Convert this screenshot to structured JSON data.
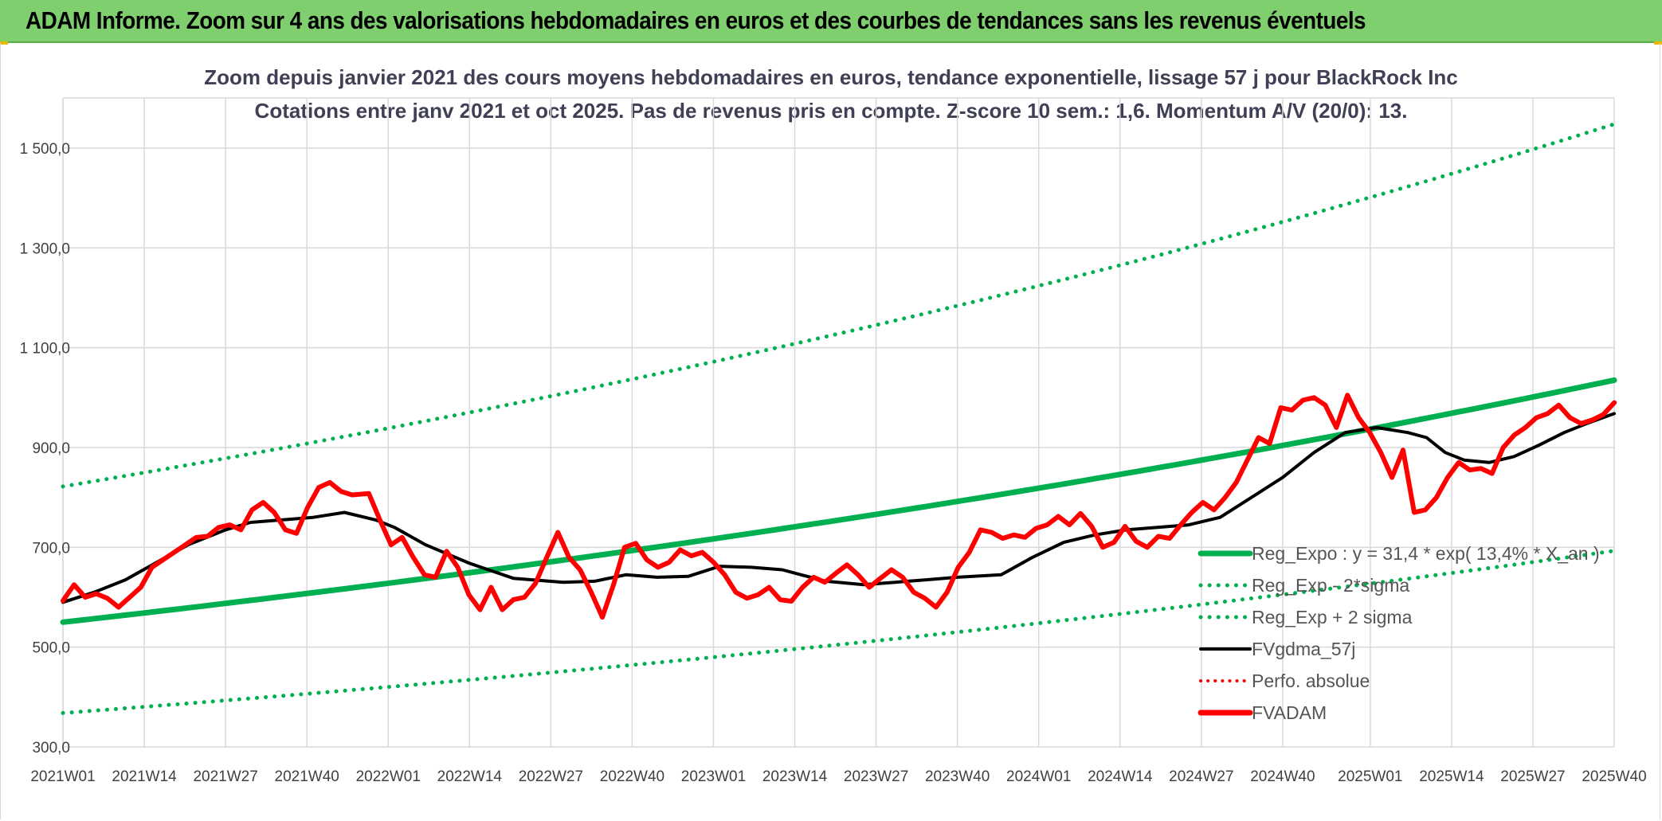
{
  "header": {
    "title": "ADAM Informe. Zoom sur 4 ans des valorisations hebdomadaires en euros et des courbes de tendances sans les revenus éventuels"
  },
  "colors": {
    "header_bg": "#7fcf6f",
    "trend": "#00b050",
    "price": "#ff0000",
    "smooth": "#000000",
    "grid": "#d9d9d9"
  },
  "chart_data": {
    "type": "line",
    "title": "Zoom depuis janvier 2021 des cours moyens hebdomadaires en euros, tendance exponentielle, lissage 57 j pour BlackRock Inc",
    "subtitle": "Cotations entre janv 2021 et oct 2025. Pas de revenus pris en compte. Z-score 10 sem.: 1,6. Momentum A/V (20/0): 13.",
    "xlabel": "",
    "ylabel": "",
    "ylim": [
      300,
      1600
    ],
    "yticks": [
      "300,0",
      "500,0",
      "700,0",
      "900,0",
      "1 100,0",
      "1 300,0",
      "1 500,0"
    ],
    "ytick_values": [
      300,
      500,
      700,
      900,
      1100,
      1300,
      1500
    ],
    "x_weeks": 248,
    "xticks": [
      "2021W01",
      "2021W14",
      "2021W27",
      "2021W40",
      "2022W01",
      "2022W14",
      "2022W27",
      "2022W40",
      "2023W01",
      "2023W14",
      "2023W27",
      "2023W40",
      "2024W01",
      "2024W14",
      "2024W27",
      "2024W40",
      "2025W01",
      "2025W14",
      "2025W27",
      "2025W40"
    ],
    "xtick_weeks": [
      0,
      13,
      26,
      39,
      52,
      65,
      78,
      91,
      104,
      117,
      130,
      143,
      156,
      169,
      182,
      195,
      209,
      222,
      235,
      248
    ],
    "legend": [
      {
        "name": "Reg_Expo : y = 31,4 * exp( 13,4% *  X_an )",
        "style": "trend"
      },
      {
        "name": "Reg_Exp - 2*sigma",
        "style": "dotted-green"
      },
      {
        "name": "Reg_Exp + 2 sigma",
        "style": "dotted-green"
      },
      {
        "name": "FVgdma_57j",
        "style": "smooth"
      },
      {
        "name": "Perfo. absolue",
        "style": "dotted-red"
      },
      {
        "name": "FVADAM",
        "style": "price"
      }
    ],
    "series": [
      {
        "name": "Reg_Expo",
        "kind": "exponential",
        "start": 550,
        "end": 1035
      },
      {
        "name": "Reg_Exp - 2*sigma",
        "kind": "exponential",
        "start": 368,
        "end": 693
      },
      {
        "name": "Reg_Exp + 2 sigma",
        "kind": "exponential",
        "start": 822,
        "end": 1548
      },
      {
        "name": "FVgdma_57j",
        "points": [
          [
            0,
            590
          ],
          [
            5,
            610
          ],
          [
            10,
            635
          ],
          [
            15,
            670
          ],
          [
            20,
            705
          ],
          [
            26,
            735
          ],
          [
            30,
            750
          ],
          [
            35,
            755
          ],
          [
            40,
            760
          ],
          [
            45,
            770
          ],
          [
            50,
            755
          ],
          [
            53,
            740
          ],
          [
            58,
            705
          ],
          [
            65,
            668
          ],
          [
            72,
            638
          ],
          [
            80,
            630
          ],
          [
            85,
            632
          ],
          [
            90,
            645
          ],
          [
            95,
            640
          ],
          [
            100,
            642
          ],
          [
            105,
            662
          ],
          [
            110,
            660
          ],
          [
            115,
            655
          ],
          [
            118,
            645
          ],
          [
            122,
            632
          ],
          [
            128,
            625
          ],
          [
            133,
            630
          ],
          [
            138,
            635
          ],
          [
            143,
            640
          ],
          [
            150,
            645
          ],
          [
            155,
            680
          ],
          [
            160,
            710
          ],
          [
            165,
            725
          ],
          [
            170,
            735
          ],
          [
            175,
            740
          ],
          [
            180,
            745
          ],
          [
            185,
            760
          ],
          [
            190,
            800
          ],
          [
            195,
            840
          ],
          [
            200,
            890
          ],
          [
            205,
            930
          ],
          [
            210,
            940
          ],
          [
            215,
            930
          ],
          [
            218,
            920
          ],
          [
            221,
            890
          ],
          [
            224,
            875
          ],
          [
            228,
            870
          ],
          [
            232,
            882
          ],
          [
            236,
            905
          ],
          [
            240,
            930
          ],
          [
            244,
            950
          ],
          [
            248,
            968
          ]
        ]
      },
      {
        "name": "FVADAM",
        "points": [
          [
            0,
            593
          ],
          [
            2,
            625
          ],
          [
            4,
            600
          ],
          [
            6,
            607
          ],
          [
            8,
            598
          ],
          [
            10,
            580
          ],
          [
            12,
            600
          ],
          [
            14,
            620
          ],
          [
            16,
            660
          ],
          [
            18,
            675
          ],
          [
            20,
            690
          ],
          [
            22,
            705
          ],
          [
            24,
            720
          ],
          [
            26,
            722
          ],
          [
            28,
            740
          ],
          [
            30,
            745
          ],
          [
            32,
            735
          ],
          [
            34,
            775
          ],
          [
            36,
            790
          ],
          [
            38,
            770
          ],
          [
            40,
            735
          ],
          [
            42,
            728
          ],
          [
            44,
            780
          ],
          [
            46,
            820
          ],
          [
            48,
            830
          ],
          [
            50,
            812
          ],
          [
            52,
            805
          ],
          [
            55,
            808
          ],
          [
            57,
            755
          ],
          [
            59,
            705
          ],
          [
            61,
            720
          ],
          [
            63,
            680
          ],
          [
            65,
            645
          ],
          [
            67,
            640
          ],
          [
            69,
            692
          ],
          [
            71,
            660
          ],
          [
            73,
            605
          ],
          [
            75,
            575
          ],
          [
            77,
            620
          ],
          [
            79,
            575
          ],
          [
            81,
            595
          ],
          [
            83,
            600
          ],
          [
            85,
            628
          ],
          [
            87,
            680
          ],
          [
            89,
            730
          ],
          [
            91,
            680
          ],
          [
            93,
            655
          ],
          [
            95,
            610
          ],
          [
            97,
            560
          ],
          [
            99,
            625
          ],
          [
            101,
            700
          ],
          [
            103,
            708
          ],
          [
            105,
            675
          ],
          [
            107,
            660
          ],
          [
            109,
            670
          ],
          [
            111,
            695
          ],
          [
            113,
            683
          ],
          [
            115,
            690
          ],
          [
            117,
            670
          ],
          [
            119,
            645
          ],
          [
            121,
            610
          ],
          [
            123,
            598
          ],
          [
            125,
            605
          ],
          [
            127,
            620
          ],
          [
            129,
            595
          ],
          [
            131,
            592
          ],
          [
            133,
            620
          ],
          [
            135,
            640
          ],
          [
            137,
            630
          ],
          [
            139,
            648
          ],
          [
            141,
            665
          ],
          [
            143,
            645
          ],
          [
            145,
            620
          ],
          [
            147,
            638
          ],
          [
            149,
            655
          ],
          [
            151,
            640
          ],
          [
            153,
            610
          ],
          [
            155,
            598
          ],
          [
            157,
            580
          ],
          [
            159,
            610
          ],
          [
            161,
            660
          ],
          [
            163,
            690
          ],
          [
            165,
            735
          ],
          [
            167,
            730
          ],
          [
            169,
            718
          ],
          [
            171,
            725
          ],
          [
            173,
            720
          ],
          [
            175,
            738
          ],
          [
            177,
            745
          ],
          [
            179,
            762
          ],
          [
            181,
            745
          ],
          [
            183,
            768
          ],
          [
            185,
            742
          ],
          [
            187,
            700
          ],
          [
            189,
            710
          ],
          [
            191,
            742
          ],
          [
            193,
            712
          ],
          [
            195,
            700
          ],
          [
            197,
            722
          ],
          [
            199,
            718
          ],
          [
            201,
            745
          ],
          [
            203,
            770
          ],
          [
            205,
            790
          ],
          [
            207,
            775
          ],
          [
            209,
            800
          ],
          [
            211,
            830
          ],
          [
            213,
            875
          ],
          [
            215,
            920
          ],
          [
            217,
            908
          ],
          [
            219,
            980
          ],
          [
            221,
            975
          ],
          [
            223,
            995
          ],
          [
            225,
            1000
          ],
          [
            227,
            985
          ],
          [
            229,
            940
          ],
          [
            231,
            1005
          ],
          [
            233,
            960
          ],
          [
            235,
            930
          ],
          [
            237,
            890
          ],
          [
            239,
            840
          ],
          [
            241,
            895
          ],
          [
            243,
            770
          ],
          [
            245,
            775
          ],
          [
            247,
            800
          ],
          [
            249,
            840
          ],
          [
            251,
            870
          ],
          [
            253,
            855
          ],
          [
            255,
            858
          ],
          [
            257,
            848
          ],
          [
            259,
            900
          ],
          [
            261,
            925
          ],
          [
            263,
            940
          ],
          [
            265,
            960
          ],
          [
            267,
            968
          ],
          [
            269,
            985
          ],
          [
            271,
            960
          ],
          [
            273,
            948
          ],
          [
            275,
            955
          ],
          [
            277,
            966
          ],
          [
            279,
            990
          ]
        ],
        "x_scale": 0.889
      }
    ]
  }
}
